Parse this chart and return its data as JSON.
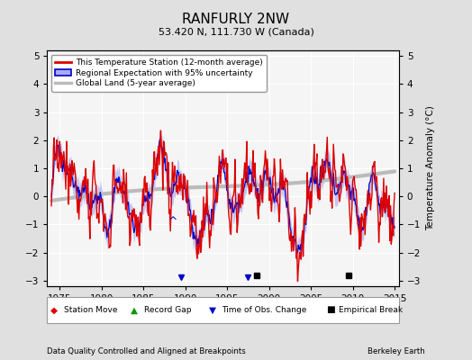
{
  "title": "RANFURLY 2NW",
  "subtitle": "53.420 N, 111.730 W (Canada)",
  "ylabel": "Temperature Anomaly (°C)",
  "ylim": [
    -3.2,
    5.2
  ],
  "xlim": [
    1973.5,
    2015.5
  ],
  "yticks": [
    -3,
    -2,
    -1,
    0,
    1,
    2,
    3,
    4,
    5
  ],
  "xticks": [
    1975,
    1980,
    1985,
    1990,
    1995,
    2000,
    2005,
    2010,
    2015
  ],
  "bg_color": "#e0e0e0",
  "plot_bg_color": "#f5f5f5",
  "red_color": "#dd0000",
  "blue_color": "#0000cc",
  "blue_fill_color": "#aaaaee",
  "gray_color": "#bbbbbb",
  "legend_labels": [
    "This Temperature Station (12-month average)",
    "Regional Expectation with 95% uncertainty",
    "Global Land (5-year average)"
  ],
  "footer_left": "Data Quality Controlled and Aligned at Breakpoints",
  "footer_right": "Berkeley Earth",
  "time_of_obs": [
    1989.5,
    1997.5
  ],
  "empirical_break": [
    1998.5,
    2009.5
  ],
  "caret_x": 1988.5,
  "caret_y": -1.1
}
